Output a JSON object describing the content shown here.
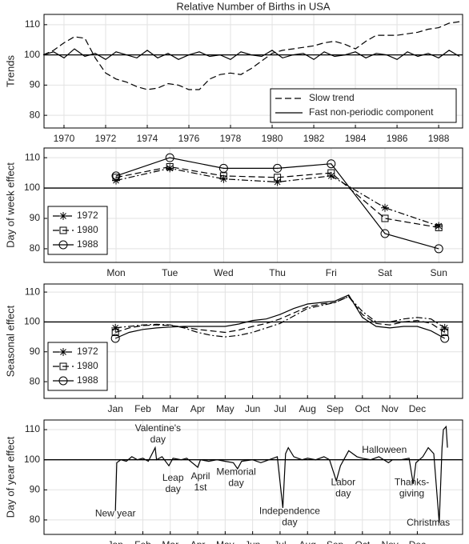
{
  "chart_data": [
    {
      "type": "line",
      "title": "Relative Number of Births in USA",
      "ylabel": "Trends",
      "xlim": [
        1969.04,
        1989.15
      ],
      "ylim": [
        75.8,
        113.4
      ],
      "xticks": [
        1970,
        1972,
        1974,
        1976,
        1978,
        1980,
        1982,
        1984,
        1986,
        1988
      ],
      "yticks": [
        80,
        90,
        100,
        110
      ],
      "grid": true,
      "hline": 100,
      "legend": "lower right",
      "markers": "none",
      "x": [
        1969,
        1969.5,
        1970,
        1970.5,
        1971,
        1971.5,
        1972,
        1972.5,
        1973,
        1973.5,
        1974,
        1974.5,
        1975,
        1975.5,
        1976,
        1976.5,
        1977,
        1977.5,
        1978,
        1978.5,
        1979,
        1979.5,
        1980,
        1980.5,
        1981,
        1981.5,
        1982,
        1982.5,
        1983,
        1983.5,
        1984,
        1984.5,
        1985,
        1985.5,
        1986,
        1986.5,
        1987,
        1987.5,
        1988,
        1988.5,
        1989
      ],
      "series": [
        {
          "name": "Slow trend",
          "color": "#000000",
          "dash": "dashed",
          "values": [
            100,
            101.5,
            104,
            106,
            105.5,
            99,
            94,
            92,
            91,
            89.5,
            88.5,
            89,
            90.5,
            90,
            88.5,
            88.5,
            92,
            93.5,
            94,
            93.5,
            95.5,
            98,
            100.5,
            101.5,
            102,
            102.5,
            103,
            104,
            104.5,
            103.5,
            102,
            104.5,
            106.5,
            106.5,
            106.5,
            107,
            107.5,
            108.5,
            109,
            110.5,
            111
          ]
        },
        {
          "name": "Fast non-periodic component",
          "color": "#000000",
          "dash": "solid",
          "values": [
            100,
            101,
            99,
            102,
            99.5,
            100.5,
            98.5,
            101,
            100,
            99,
            101.5,
            99,
            100.5,
            98.5,
            100,
            101,
            99.5,
            100,
            98.5,
            101,
            100,
            99.5,
            101.5,
            99,
            100,
            100.5,
            98.5,
            101,
            99.5,
            100,
            101,
            99,
            100.5,
            100,
            98.5,
            101,
            99.5,
            100.5,
            99,
            101.5,
            99.5
          ]
        }
      ]
    },
    {
      "type": "line",
      "ylabel": "Day of week effect",
      "ylim": [
        75.5,
        113.2
      ],
      "yticks": [
        80,
        90,
        100,
        110
      ],
      "grid": true,
      "hline": 100,
      "legend": "upper left",
      "markers": "all",
      "categories": [
        "Mon",
        "Tue",
        "Wed",
        "Thu",
        "Fri",
        "Sat",
        "Sun"
      ],
      "series": [
        {
          "name": "1972",
          "color": "#000000",
          "dash": "dashdot",
          "marker": "asterisk",
          "values": [
            102.5,
            106.5,
            103,
            102,
            104,
            93.5,
            87.5
          ]
        },
        {
          "name": "1980",
          "color": "#000000",
          "dash": "dashed",
          "marker": "square",
          "values": [
            103.5,
            107,
            104,
            103.5,
            105,
            90,
            87
          ]
        },
        {
          "name": "1988",
          "color": "#000000",
          "dash": "solid",
          "marker": "circle",
          "values": [
            104,
            110,
            106.5,
            106.5,
            108,
            85,
            80
          ]
        }
      ]
    },
    {
      "type": "line",
      "ylabel": "Seasonal effect",
      "xlim": [
        -1.6,
        13.65
      ],
      "ylim": [
        74.4,
        112.7
      ],
      "yticks": [
        80,
        90,
        100,
        110
      ],
      "grid": true,
      "hline": 100,
      "legend": "upper left",
      "markers": "ends",
      "xticks": [
        {
          "value": 1,
          "label": "Jan"
        },
        {
          "value": 2,
          "label": "Feb"
        },
        {
          "value": 3,
          "label": "Mar"
        },
        {
          "value": 4,
          "label": "Apr"
        },
        {
          "value": 5,
          "label": "May"
        },
        {
          "value": 6,
          "label": "Jun"
        },
        {
          "value": 7,
          "label": "Jul"
        },
        {
          "value": 8,
          "label": "Aug"
        },
        {
          "value": 9,
          "label": "Sep"
        },
        {
          "value": 10,
          "label": "Oct"
        },
        {
          "value": 11,
          "label": "Nov"
        },
        {
          "value": 12,
          "label": "Dec"
        }
      ],
      "x": [
        1,
        1.5,
        2,
        2.5,
        3,
        3.5,
        4,
        4.5,
        5,
        5.5,
        6,
        6.5,
        7,
        7.5,
        8,
        8.5,
        9,
        9.5,
        10,
        10.5,
        11,
        11.5,
        12,
        12.5,
        13
      ],
      "series": [
        {
          "name": "1972",
          "color": "#000000",
          "dash": "dashdot",
          "marker": "asterisk",
          "values": [
            98,
            98.5,
            99,
            99.2,
            99,
            98,
            96.5,
            95.5,
            95,
            95.5,
            96.5,
            98,
            99.5,
            102,
            104.5,
            105.5,
            106.5,
            108.5,
            103.5,
            100,
            100,
            101,
            101.5,
            101,
            98
          ]
        },
        {
          "name": "1980",
          "color": "#000000",
          "dash": "dashed",
          "marker": "square",
          "values": [
            96.5,
            98,
            98.8,
            99,
            98.8,
            98.3,
            97.5,
            97,
            96.5,
            97.3,
            98.5,
            99.5,
            101,
            103,
            105,
            106,
            106.5,
            108.5,
            102.5,
            99.5,
            99,
            100,
            100.5,
            99.5,
            96.5
          ]
        },
        {
          "name": "1988",
          "color": "#000000",
          "dash": "solid",
          "marker": "circle",
          "values": [
            94.5,
            96.5,
            97.5,
            98,
            98.3,
            98.5,
            98.5,
            98.5,
            98.5,
            99.3,
            100.5,
            101,
            102.5,
            104.5,
            106,
            106.5,
            107,
            109,
            101.5,
            98.5,
            98,
            98.5,
            98.5,
            97,
            94.5
          ]
        }
      ]
    },
    {
      "type": "line",
      "ylabel": "Day of year effect",
      "xlim": [
        -1.6,
        13.65
      ],
      "ylim": [
        75.2,
        113.2
      ],
      "yticks": [
        80,
        90,
        100,
        110
      ],
      "grid": true,
      "hline": 100,
      "markers": "none",
      "xticks": [
        {
          "value": 1,
          "label": "Jan"
        },
        {
          "value": 2,
          "label": "Feb"
        },
        {
          "value": 3,
          "label": "Mar"
        },
        {
          "value": 4,
          "label": "Apr"
        },
        {
          "value": 5,
          "label": "May"
        },
        {
          "value": 6,
          "label": "Jun"
        },
        {
          "value": 7,
          "label": "Jul"
        },
        {
          "value": 8,
          "label": "Aug"
        },
        {
          "value": 9,
          "label": "Sep"
        },
        {
          "value": 10,
          "label": "Oct"
        },
        {
          "value": 11,
          "label": "Nov"
        },
        {
          "value": 12,
          "label": "Dec"
        }
      ],
      "x": [
        1,
        1.05,
        1.2,
        1.4,
        1.6,
        1.8,
        2,
        2.2,
        2.45,
        2.5,
        2.7,
        2.95,
        3.1,
        3.4,
        3.6,
        4,
        4.1,
        4.4,
        4.7,
        5,
        5.3,
        5.45,
        5.6,
        6,
        6.3,
        6.6,
        6.9,
        7.1,
        7.2,
        7.3,
        7.5,
        7.8,
        8,
        8.3,
        8.6,
        8.8,
        9.05,
        9.2,
        9.5,
        9.8,
        10,
        10.3,
        10.6,
        10.95,
        11.1,
        11.4,
        11.7,
        11.85,
        11.95,
        12.2,
        12.4,
        12.6,
        12.8,
        12.9,
        12.95,
        13.05,
        13.1
      ],
      "series": [
        {
          "color": "#000000",
          "dash": "solid",
          "values": [
            83,
            99,
            100,
            99.5,
            101,
            100,
            100.5,
            99.5,
            104,
            100,
            101,
            98,
            100.5,
            100,
            100.5,
            97.5,
            100,
            99.5,
            100,
            99.5,
            99,
            97,
            99.5,
            100,
            99,
            100,
            101,
            84,
            102,
            104,
            101,
            100,
            100.5,
            100,
            101,
            100,
            93,
            98,
            103,
            101,
            100.5,
            100,
            101,
            99,
            100,
            100,
            100.5,
            92,
            99,
            101,
            104,
            102,
            79,
            104,
            110,
            111,
            104
          ]
        }
      ],
      "annotations": [
        {
          "text": [
            "New year"
          ],
          "x": 1,
          "y": 82
        },
        {
          "text": [
            "Valentine's",
            "day"
          ],
          "x": 2.55,
          "y": 108.5
        },
        {
          "text": [
            "Leap",
            "day"
          ],
          "x": 3.1,
          "y": 92
        },
        {
          "text": [
            "April",
            "1st"
          ],
          "x": 4.1,
          "y": 92.5
        },
        {
          "text": [
            "Memorial",
            "day"
          ],
          "x": 5.4,
          "y": 94
        },
        {
          "text": [
            "Independence",
            "day"
          ],
          "x": 7.35,
          "y": 81
        },
        {
          "text": [
            "Labor",
            "day"
          ],
          "x": 9.3,
          "y": 90.5
        },
        {
          "text": [
            "Halloween"
          ],
          "x": 10.8,
          "y": 103.2
        },
        {
          "text": [
            "Thanks-",
            "giving"
          ],
          "x": 11.8,
          "y": 90.5
        },
        {
          "text": [
            "Christmas"
          ],
          "x": 12.4,
          "y": 79
        }
      ]
    }
  ]
}
